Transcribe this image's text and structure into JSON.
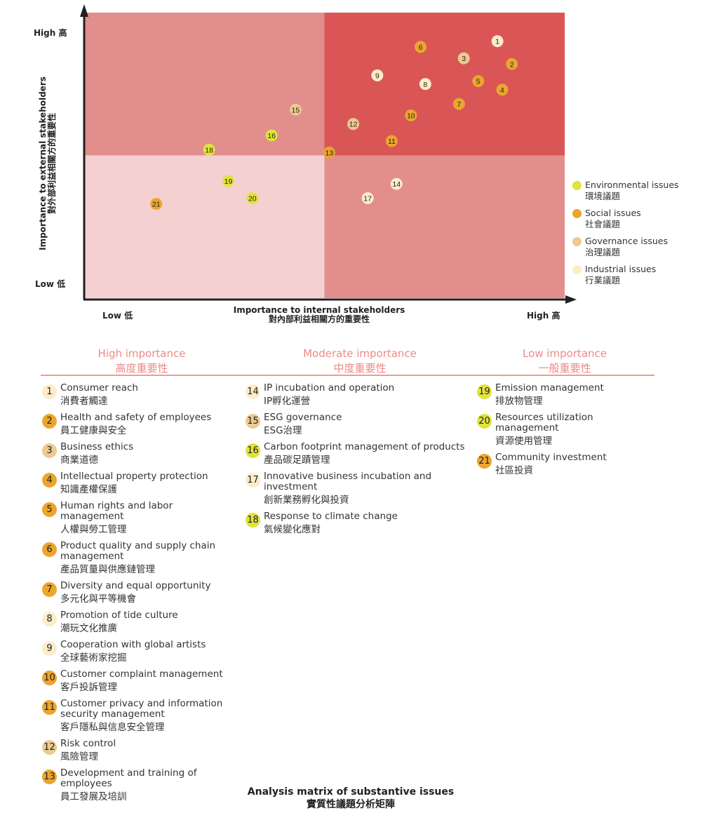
{
  "chart_data": {
    "type": "scatter",
    "title": "",
    "xlabel": "Importance to internal stakeholders",
    "xlabel_zh": "對內部利益相關方的重要性",
    "ylabel": "Importance to external stakeholders",
    "ylabel_zh": "對外部利益相關方的重要性",
    "x_ticks": {
      "low": "Low 低",
      "high": "High 高"
    },
    "y_ticks": {
      "low": "Low 低",
      "high": "High 高"
    },
    "xlim": [
      0,
      10
    ],
    "ylim": [
      0,
      10
    ],
    "grid": false,
    "quadrant_colors": {
      "top_left": "#e18e8d",
      "top_right": "#da5555",
      "bottom_left": "#f4d0d0",
      "bottom_right": "#e18e8d"
    },
    "legend_position": "right",
    "categories": {
      "environmental": {
        "label": "Environmental issues",
        "label_zh": "環境議題",
        "color": "#e0e33b"
      },
      "social": {
        "label": "Social issues",
        "label_zh": "社會議題",
        "color": "#eba52f"
      },
      "governance": {
        "label": "Governance issues",
        "label_zh": "治理議題",
        "color": "#ecca92"
      },
      "industrial": {
        "label": "Industrial issues",
        "label_zh": "行業議題",
        "color": "#fcecca"
      }
    },
    "points": [
      {
        "id": "1",
        "category": "industrial",
        "x": 8.6,
        "y": 9.0
      },
      {
        "id": "2",
        "category": "social",
        "x": 8.9,
        "y": 8.2
      },
      {
        "id": "3",
        "category": "governance",
        "x": 7.9,
        "y": 8.4
      },
      {
        "id": "4",
        "category": "social",
        "x": 8.7,
        "y": 7.3
      },
      {
        "id": "5",
        "category": "social",
        "x": 8.2,
        "y": 7.6
      },
      {
        "id": "6",
        "category": "social",
        "x": 7.0,
        "y": 8.8
      },
      {
        "id": "7",
        "category": "social",
        "x": 7.8,
        "y": 6.8
      },
      {
        "id": "8",
        "category": "industrial",
        "x": 7.1,
        "y": 7.5
      },
      {
        "id": "9",
        "category": "industrial",
        "x": 6.1,
        "y": 7.8
      },
      {
        "id": "10",
        "category": "social",
        "x": 6.8,
        "y": 6.4
      },
      {
        "id": "11",
        "category": "social",
        "x": 6.4,
        "y": 5.5
      },
      {
        "id": "12",
        "category": "governance",
        "x": 5.6,
        "y": 6.1
      },
      {
        "id": "13",
        "category": "social",
        "x": 5.1,
        "y": 5.1
      },
      {
        "id": "14",
        "category": "industrial",
        "x": 6.5,
        "y": 4.0
      },
      {
        "id": "15",
        "category": "governance",
        "x": 4.4,
        "y": 6.6
      },
      {
        "id": "16",
        "category": "environmental",
        "x": 3.9,
        "y": 5.7
      },
      {
        "id": "17",
        "category": "industrial",
        "x": 5.9,
        "y": 3.5
      },
      {
        "id": "18",
        "category": "environmental",
        "x": 2.6,
        "y": 5.2
      },
      {
        "id": "19",
        "category": "environmental",
        "x": 3.0,
        "y": 4.1
      },
      {
        "id": "20",
        "category": "environmental",
        "x": 3.5,
        "y": 3.5
      },
      {
        "id": "21",
        "category": "social",
        "x": 1.5,
        "y": 3.3
      }
    ]
  },
  "columns": [
    {
      "title": "High importance",
      "title_zh": "高度重要性",
      "items": [
        {
          "id": "1",
          "category": "industrial",
          "en": "Consumer reach",
          "zh": "消費者觸達"
        },
        {
          "id": "2",
          "category": "social",
          "en": "Health and safety of employees",
          "zh": "員工健康與安全"
        },
        {
          "id": "3",
          "category": "governance",
          "en": "Business ethics",
          "zh": "商業道德"
        },
        {
          "id": "4",
          "category": "social",
          "en": "Intellectual property protection",
          "zh": "知識產權保護"
        },
        {
          "id": "5",
          "category": "social",
          "en": "Human rights and labor management",
          "zh": "人權與勞工管理"
        },
        {
          "id": "6",
          "category": "social",
          "en": "Product quality and supply chain management",
          "zh": "產品質量與供應鏈管理"
        },
        {
          "id": "7",
          "category": "social",
          "en": "Diversity and equal opportunity",
          "zh": "多元化與平等機會"
        },
        {
          "id": "8",
          "category": "industrial",
          "en": "Promotion of tide culture",
          "zh": "潮玩文化推廣"
        },
        {
          "id": "9",
          "category": "industrial",
          "en": "Cooperation with global artists",
          "zh": "全球藝術家挖掘"
        },
        {
          "id": "10",
          "category": "social",
          "en": "Customer complaint management",
          "zh": "客戶投訴管理"
        },
        {
          "id": "11",
          "category": "social",
          "en": "Customer privacy and information security management",
          "zh": "客戶隱私與信息安全管理"
        },
        {
          "id": "12",
          "category": "governance",
          "en": "Risk control",
          "zh": "風險管理"
        },
        {
          "id": "13",
          "category": "social",
          "en": "Development and training of employees",
          "zh": "員工發展及培訓"
        }
      ]
    },
    {
      "title": "Moderate importance",
      "title_zh": "中度重要性",
      "items": [
        {
          "id": "14",
          "category": "industrial",
          "en": "IP incubation and operation",
          "zh": "IP孵化運營"
        },
        {
          "id": "15",
          "category": "governance",
          "en": "ESG governance",
          "zh": "ESG治理"
        },
        {
          "id": "16",
          "category": "environmental",
          "en": "Carbon footprint management of products",
          "zh": "產品碳足蹟管理"
        },
        {
          "id": "17",
          "category": "industrial",
          "en": "Innovative business incubation and investment",
          "zh": "創新業務孵化與投資"
        },
        {
          "id": "18",
          "category": "environmental",
          "en": "Response to climate change",
          "zh": "氣候變化應對"
        }
      ]
    },
    {
      "title": "Low importance",
      "title_zh": "一般重要性",
      "items": [
        {
          "id": "19",
          "category": "environmental",
          "en": "Emission management",
          "zh": "排放物管理"
        },
        {
          "id": "20",
          "category": "environmental",
          "en": "Resources utilization management",
          "zh": "資源使用管理"
        },
        {
          "id": "21",
          "category": "social",
          "en": "Community investment",
          "zh": "社區投資"
        }
      ]
    }
  ],
  "caption": {
    "en": "Analysis matrix of substantive issues",
    "zh": "實質性議題分析矩陣"
  }
}
